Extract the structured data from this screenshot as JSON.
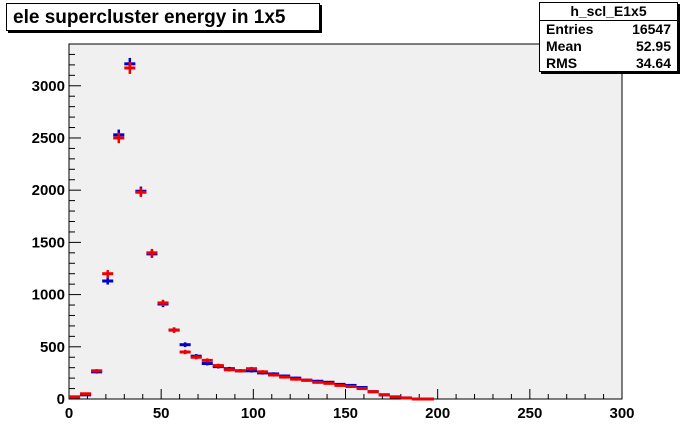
{
  "chart_data": {
    "type": "scatter",
    "title": "ele supercluster energy in 1x5",
    "xlabel": "",
    "ylabel": "",
    "xlim": [
      0,
      300
    ],
    "ylim": [
      0,
      3400
    ],
    "x_ticks": [
      0,
      50,
      100,
      150,
      200,
      250,
      300
    ],
    "y_ticks": [
      0,
      500,
      1000,
      1500,
      2000,
      2500,
      3000
    ],
    "bin_width": 6,
    "grid": false,
    "legend": "none",
    "series": [
      {
        "color": "#0000cc",
        "x": [
          3,
          9,
          15,
          21,
          27,
          33,
          39,
          45,
          51,
          57,
          63,
          69,
          75,
          81,
          87,
          93,
          99,
          105,
          111,
          117,
          123,
          129,
          135,
          141,
          147,
          153,
          159,
          165,
          171,
          177,
          183,
          189,
          195
        ],
        "values": [
          20,
          40,
          260,
          1130,
          2530,
          3210,
          1990,
          1390,
          910,
          660,
          520,
          410,
          340,
          310,
          290,
          270,
          270,
          250,
          240,
          220,
          200,
          180,
          170,
          160,
          140,
          130,
          110,
          70,
          40,
          20,
          10,
          0,
          0
        ]
      },
      {
        "color": "#ee0000",
        "x": [
          3,
          9,
          15,
          21,
          27,
          33,
          39,
          45,
          51,
          57,
          63,
          69,
          75,
          81,
          87,
          93,
          99,
          105,
          111,
          117,
          123,
          129,
          135,
          141,
          147,
          153,
          159,
          165,
          171,
          177,
          183,
          189,
          195
        ],
        "values": [
          20,
          50,
          270,
          1200,
          2500,
          3170,
          1980,
          1400,
          920,
          660,
          450,
          400,
          370,
          320,
          280,
          270,
          290,
          260,
          230,
          210,
          190,
          180,
          160,
          150,
          130,
          120,
          100,
          70,
          40,
          20,
          10,
          0,
          0
        ]
      }
    ]
  },
  "stats": {
    "name": "h_scl_E1x5",
    "rows": [
      {
        "label": "Entries",
        "value": "16547"
      },
      {
        "label": "Mean",
        "value": "52.95"
      },
      {
        "label": "RMS",
        "value": "34.64"
      }
    ]
  },
  "colors": {
    "frame_fill": "#f0f0f0",
    "page_bg": "#ffffff"
  }
}
